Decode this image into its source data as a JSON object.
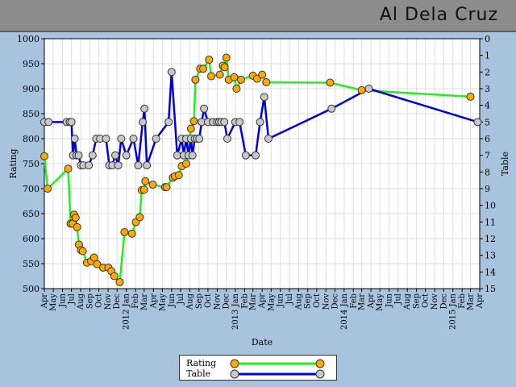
{
  "header": {
    "player_name": "Al Dela Cruz"
  },
  "colors": {
    "rating": "#22ee22",
    "table": "#0000dd",
    "rating_marker": "#ffaa00",
    "table_marker": "#c8c8c8",
    "background": "#a8c3dd",
    "header": "#8c8c8c"
  },
  "legend": {
    "rating_label": "Rating",
    "table_label": "Table"
  },
  "chart_data": {
    "type": "line",
    "xlabel": "Date",
    "ylabel_left": "Rating",
    "ylabel_right": "Table",
    "xlim": [
      "2011-04-01",
      "2015-04-01"
    ],
    "ylim_left": [
      500,
      1000
    ],
    "ylim_right": [
      15,
      0
    ],
    "y_ticks_left": [
      500,
      550,
      600,
      650,
      700,
      750,
      800,
      850,
      900,
      950,
      1000
    ],
    "y_ticks_right": [
      15,
      14,
      13,
      12,
      11,
      10,
      9,
      8,
      7,
      6,
      5,
      4,
      3,
      2,
      1,
      0
    ],
    "x_ticks": [
      "Apr",
      "May",
      "Jun",
      "Jul",
      "Aug",
      "Sep",
      "Oct",
      "Nov",
      "Dec",
      "2012 Jan",
      "Feb",
      "Mar",
      "Apr",
      "May",
      "Jun",
      "Jul",
      "Aug",
      "Sep",
      "Oct",
      "Nov",
      "Dec",
      "2013 Jan",
      "Feb",
      "Mar",
      "Apr",
      "May",
      "Jun",
      "Jul",
      "Aug",
      "Sep",
      "Oct",
      "Nov",
      "Dec",
      "2014 Jan",
      "Feb",
      "Mar",
      "Apr",
      "May",
      "Jun",
      "Jul",
      "Aug",
      "Sep",
      "Oct",
      "Nov",
      "Dec",
      "2015 Jan",
      "Feb",
      "Mar",
      "Apr"
    ],
    "grid": true,
    "legend_position": "bottom-center",
    "series": [
      {
        "name": "Rating",
        "axis": "left",
        "points": [
          [
            "2011-04-01",
            765
          ],
          [
            "2011-04-12",
            700
          ],
          [
            "2011-06-20",
            740
          ],
          [
            "2011-06-28",
            630
          ],
          [
            "2011-07-05",
            630
          ],
          [
            "2011-07-10",
            648
          ],
          [
            "2011-07-15",
            642
          ],
          [
            "2011-07-20",
            623
          ],
          [
            "2011-07-26",
            588
          ],
          [
            "2011-08-02",
            577
          ],
          [
            "2011-08-08",
            575
          ],
          [
            "2011-08-22",
            552
          ],
          [
            "2011-09-05",
            555
          ],
          [
            "2011-09-15",
            562
          ],
          [
            "2011-09-25",
            549
          ],
          [
            "2011-10-15",
            542
          ],
          [
            "2011-11-02",
            542
          ],
          [
            "2011-11-12",
            535
          ],
          [
            "2011-11-22",
            525
          ],
          [
            "2011-12-10",
            513
          ],
          [
            "2011-12-26",
            613
          ],
          [
            "2012-01-20",
            610
          ],
          [
            "2012-02-02",
            633
          ],
          [
            "2012-02-15",
            643
          ],
          [
            "2012-02-22",
            697
          ],
          [
            "2012-03-01",
            698
          ],
          [
            "2012-03-05",
            715
          ],
          [
            "2012-03-30",
            708
          ],
          [
            "2012-05-10",
            703
          ],
          [
            "2012-05-15",
            703
          ],
          [
            "2012-06-05",
            722
          ],
          [
            "2012-06-12",
            725
          ],
          [
            "2012-06-25",
            727
          ],
          [
            "2012-07-05",
            745
          ],
          [
            "2012-07-20",
            750
          ],
          [
            "2012-08-05",
            820
          ],
          [
            "2012-08-15",
            835
          ],
          [
            "2012-08-20",
            918
          ],
          [
            "2012-09-05",
            940
          ],
          [
            "2012-09-15",
            940
          ],
          [
            "2012-10-05",
            958
          ],
          [
            "2012-10-12",
            925
          ],
          [
            "2012-11-10",
            928
          ],
          [
            "2012-11-20",
            946
          ],
          [
            "2012-11-26",
            943
          ],
          [
            "2012-12-02",
            962
          ],
          [
            "2012-12-10",
            918
          ],
          [
            "2012-12-28",
            923
          ],
          [
            "2013-01-05",
            900
          ],
          [
            "2013-01-20",
            918
          ],
          [
            "2013-03-01",
            926
          ],
          [
            "2013-03-15",
            920
          ],
          [
            "2013-04-01",
            928
          ],
          [
            "2013-04-15",
            913
          ],
          [
            "2013-11-15",
            912
          ],
          [
            "2014-03-01",
            897
          ],
          [
            "2015-03-01",
            884
          ]
        ]
      },
      {
        "name": "Table",
        "axis": "right",
        "points": [
          [
            "2011-04-01",
            5
          ],
          [
            "2011-04-15",
            5
          ],
          [
            "2011-06-15",
            5
          ],
          [
            "2011-06-25",
            5
          ],
          [
            "2011-07-01",
            5
          ],
          [
            "2011-07-06",
            7
          ],
          [
            "2011-07-12",
            6
          ],
          [
            "2011-07-18",
            7
          ],
          [
            "2011-07-25",
            7
          ],
          [
            "2011-08-02",
            7.6
          ],
          [
            "2011-08-10",
            7.6
          ],
          [
            "2011-08-28",
            7.6
          ],
          [
            "2011-09-10",
            7
          ],
          [
            "2011-09-22",
            6
          ],
          [
            "2011-10-05",
            6
          ],
          [
            "2011-10-25",
            6
          ],
          [
            "2011-11-05",
            7.6
          ],
          [
            "2011-11-15",
            7.6
          ],
          [
            "2011-11-25",
            7
          ],
          [
            "2011-12-05",
            7.6
          ],
          [
            "2011-12-15",
            6
          ],
          [
            "2012-01-01",
            7
          ],
          [
            "2012-01-25",
            6
          ],
          [
            "2012-02-10",
            7.6
          ],
          [
            "2012-02-25",
            5
          ],
          [
            "2012-03-02",
            4.2
          ],
          [
            "2012-03-10",
            7.6
          ],
          [
            "2012-04-10",
            6
          ],
          [
            "2012-05-22",
            5
          ],
          [
            "2012-06-01",
            2
          ],
          [
            "2012-06-20",
            7
          ],
          [
            "2012-07-05",
            6
          ],
          [
            "2012-07-12",
            7
          ],
          [
            "2012-07-20",
            6
          ],
          [
            "2012-07-28",
            7
          ],
          [
            "2012-08-05",
            6
          ],
          [
            "2012-08-10",
            7
          ],
          [
            "2012-08-18",
            6
          ],
          [
            "2012-08-25",
            6
          ],
          [
            "2012-09-02",
            6
          ],
          [
            "2012-09-10",
            5
          ],
          [
            "2012-09-18",
            4.2
          ],
          [
            "2012-10-01",
            5
          ],
          [
            "2012-10-18",
            5
          ],
          [
            "2012-11-01",
            5
          ],
          [
            "2012-11-08",
            5
          ],
          [
            "2012-11-15",
            5
          ],
          [
            "2012-11-25",
            5
          ],
          [
            "2012-12-05",
            6
          ],
          [
            "2013-01-01",
            5
          ],
          [
            "2013-01-15",
            5
          ],
          [
            "2013-02-05",
            7
          ],
          [
            "2013-03-10",
            7
          ],
          [
            "2013-03-25",
            5
          ],
          [
            "2013-04-08",
            3.5
          ],
          [
            "2013-04-22",
            6
          ],
          [
            "2013-11-20",
            4.2
          ],
          [
            "2014-03-25",
            3
          ],
          [
            "2015-03-25",
            5
          ]
        ]
      }
    ]
  }
}
